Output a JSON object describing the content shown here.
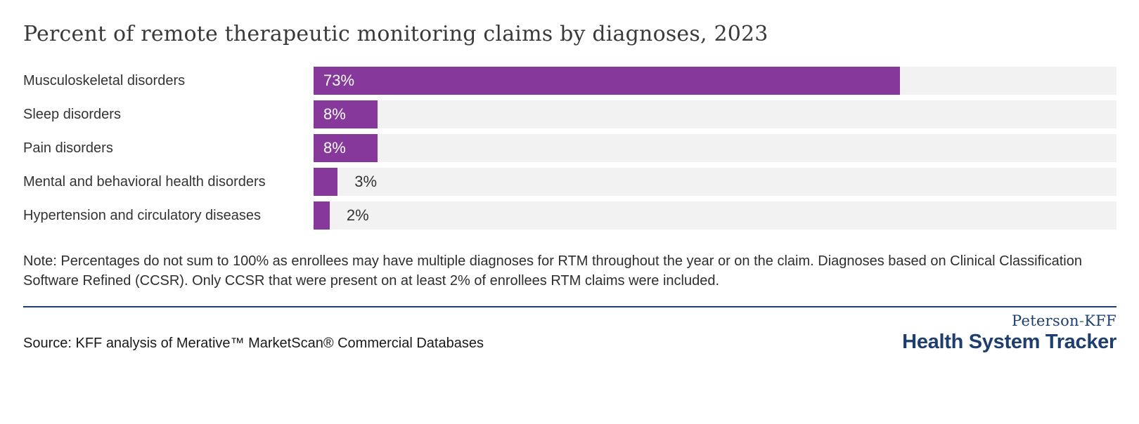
{
  "header": {
    "title": "Percent of remote therapeutic monitoring claims by diagnoses, 2023"
  },
  "chart_data": {
    "type": "bar",
    "orientation": "horizontal",
    "title": "Percent of remote therapeutic monitoring claims by diagnoses, 2023",
    "categories": [
      "Musculoskeletal disorders",
      "Sleep disorders",
      "Pain disorders",
      "Mental and behavioral health disorders",
      "Hypertension and circulatory diseases"
    ],
    "values": [
      73,
      8,
      8,
      3,
      2
    ],
    "value_labels": [
      "73%",
      "8%",
      "8%",
      "3%",
      "2%"
    ],
    "unit": "%",
    "xlabel": "",
    "ylabel": "",
    "xlim": [
      0,
      100
    ],
    "grid": false,
    "legend": "none",
    "bar_color": "#87399b",
    "track_color": "#f3f2f2",
    "inside_label_min_value": 5
  },
  "footer": {
    "note": "Note: Percentages do not sum to 100% as enrollees may have multiple diagnoses for RTM throughout the year or on the claim. Diagnoses based on Clinical Classification Software Refined (CCSR). Only CCSR that were present on at least 2% of enrollees RTM claims were included.",
    "source": "Source: KFF analysis of Merative™ MarketScan® Commercial Databases"
  },
  "logo": {
    "line1_left": "Peterson",
    "line1_hyphen": "-",
    "line1_right": "KFF",
    "line2": "Health System Tracker",
    "navy_color": "#1d3e6f",
    "green_color": "#43915e"
  }
}
